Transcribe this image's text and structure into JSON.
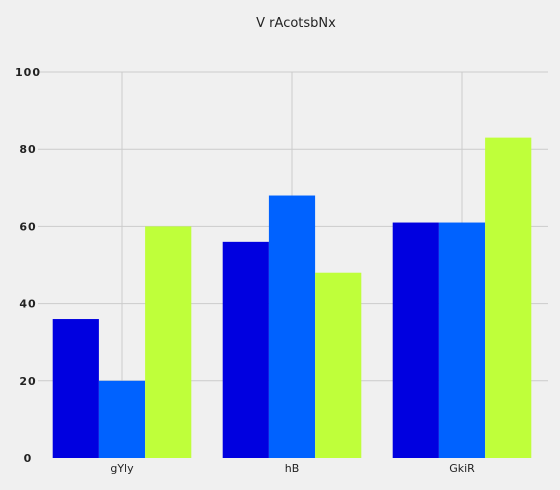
{
  "chart_data": {
    "type": "bar",
    "title": "V rAcotsbNx",
    "xlabel": "",
    "ylabel": "",
    "categories": [
      "gYly",
      "hB",
      "GkiR"
    ],
    "series": [
      {
        "values": [
          36,
          56,
          61
        ],
        "color": "#0000e0"
      },
      {
        "values": [
          20,
          68,
          61
        ],
        "color": "#0062ff"
      },
      {
        "values": [
          60,
          48,
          83
        ],
        "color": "#bfff3a"
      }
    ],
    "ylim": [
      0,
      100
    ],
    "yticks": [
      "0",
      "20",
      "40",
      "60",
      "80",
      "100"
    ],
    "grid": true,
    "legend": "none"
  },
  "colors": {
    "background": "#f0f0f0",
    "grid": "#cbcbcb",
    "text": "#222222"
  }
}
